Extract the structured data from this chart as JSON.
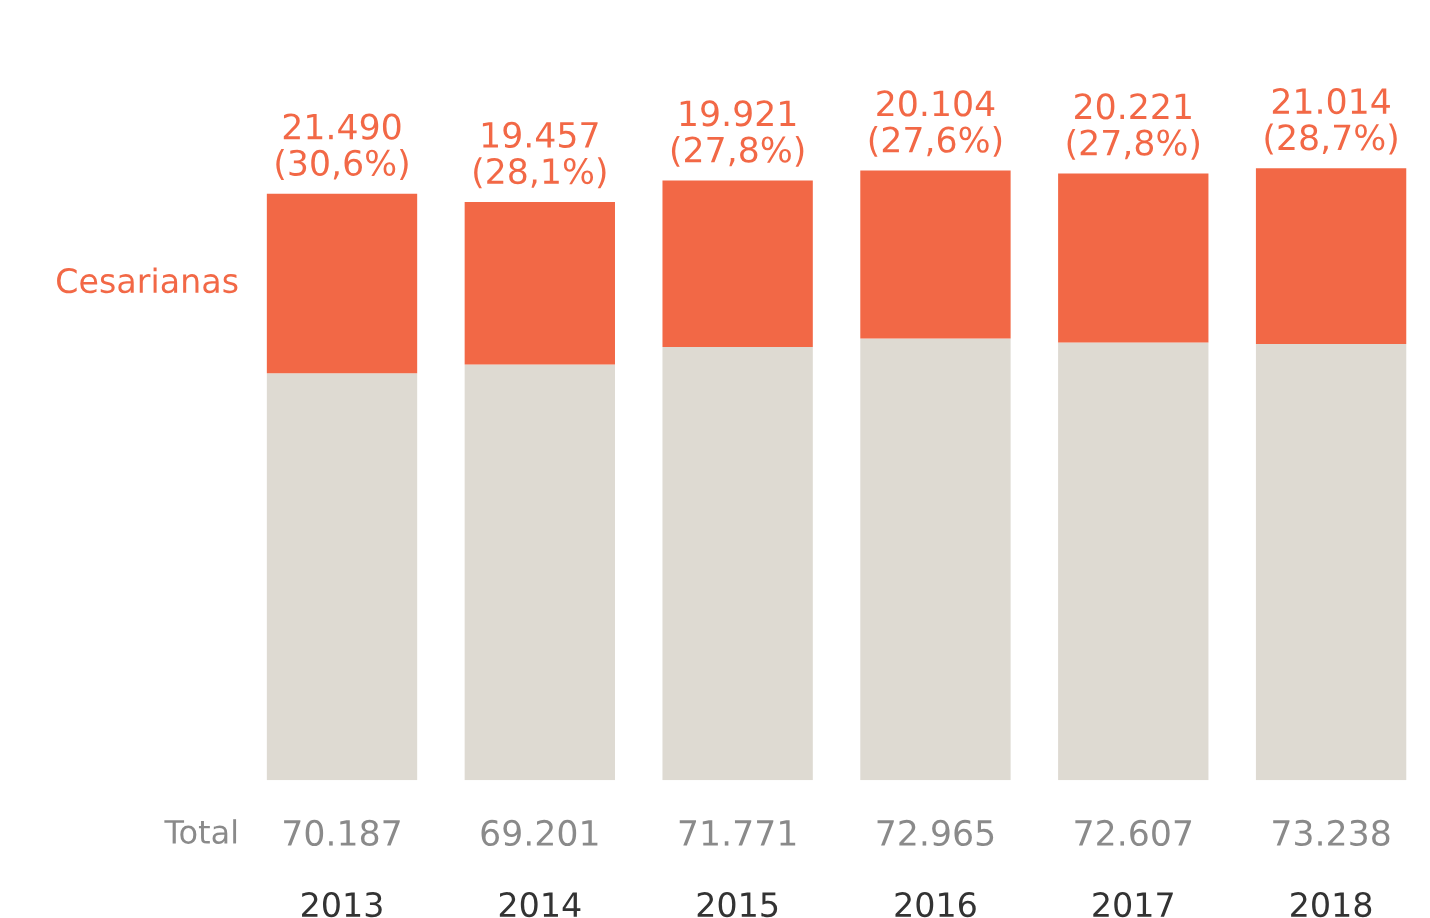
{
  "chart_data": {
    "type": "bar",
    "stacked": true,
    "categories": [
      "2013",
      "2014",
      "2015",
      "2016",
      "2017",
      "2018"
    ],
    "series": [
      {
        "color": "#dedad2",
        "values": [
          48697,
          49744,
          51850,
          52861,
          52386,
          52224
        ]
      },
      {
        "name": "Cesarianas",
        "color": "#f26846",
        "values": [
          21490,
          19457,
          19921,
          20104,
          20221,
          21014
        ],
        "value_labels": [
          "21.490\n(30,6%)",
          "19.457\n(28,1%)",
          "19.921\n(27,8%)",
          "20.104\n(27,6%)",
          "20.221\n(27,8%)",
          "21.014\n(28,7%)"
        ]
      }
    ],
    "totals": [
      "70.187",
      "69.201",
      "71.771",
      "72.965",
      "72.607",
      "73.238"
    ],
    "annotations": [
      "Total"
    ],
    "legend": false,
    "grid": false
  }
}
